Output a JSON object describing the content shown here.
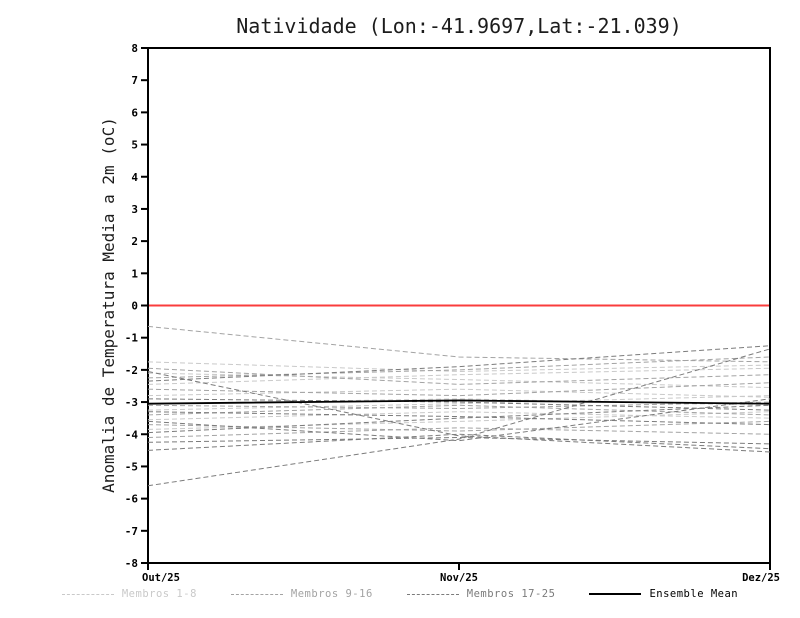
{
  "page": {
    "background": "#ffffff"
  },
  "chart_data": {
    "type": "line",
    "title": "Natividade (Lon:-41.9697,Lat:-21.039)",
    "ylabel": "Anomalia de Temperatura Media a 2m (oC)",
    "xlabel": "",
    "categories": [
      "Out/25",
      "Nov/25",
      "Dez/25"
    ],
    "ylim": [
      -8,
      8
    ],
    "yticks": [
      8,
      7,
      6,
      5,
      4,
      3,
      2,
      1,
      0,
      -1,
      -2,
      -3,
      -4,
      -5,
      -6,
      -7,
      -8
    ],
    "grid": false,
    "legend_position": "bottom",
    "frame_color": "#000000",
    "zero_line": {
      "value": 0,
      "color": "#fa3c3c"
    },
    "groups": [
      {
        "name": "Membros 1-8",
        "color": "#c9c9c9",
        "style": "dashed"
      },
      {
        "name": "Membros 9-16",
        "color": "#a3a3a3",
        "style": "dashed"
      },
      {
        "name": "Membros 17-25",
        "color": "#7b7b7b",
        "style": "dashed"
      },
      {
        "name": "Ensemble Mean",
        "color": "#000000",
        "style": "solid"
      }
    ],
    "series": [
      {
        "name": "Membro 1",
        "group": 0,
        "values": [
          -1.75,
          -2.05,
          -1.85
        ]
      },
      {
        "name": "Membro 2",
        "group": 0,
        "values": [
          -2.1,
          -2.3,
          -2.55
        ]
      },
      {
        "name": "Membro 3",
        "group": 0,
        "values": [
          -2.45,
          -2.15,
          -1.95
        ]
      },
      {
        "name": "Membro 4",
        "group": 0,
        "values": [
          -2.8,
          -2.6,
          -2.85
        ]
      },
      {
        "name": "Membro 5",
        "group": 0,
        "values": [
          -3.05,
          -2.9,
          -3.1
        ]
      },
      {
        "name": "Membro 6",
        "group": 0,
        "values": [
          -3.25,
          -3.05,
          -2.8
        ]
      },
      {
        "name": "Membro 7",
        "group": 0,
        "values": [
          -3.55,
          -3.3,
          -3.5
        ]
      },
      {
        "name": "Membro 8",
        "group": 0,
        "values": [
          -3.85,
          -3.6,
          -3.3
        ]
      },
      {
        "name": "Membro 9",
        "group": 1,
        "values": [
          -0.65,
          -1.6,
          -1.75
        ]
      },
      {
        "name": "Membro 10",
        "group": 1,
        "values": [
          -1.95,
          -2.45,
          -2.15
        ]
      },
      {
        "name": "Membro 11",
        "group": 1,
        "values": [
          -2.25,
          -2.0,
          -1.6
        ]
      },
      {
        "name": "Membro 12",
        "group": 1,
        "values": [
          -2.6,
          -2.8,
          -2.4
        ]
      },
      {
        "name": "Membro 13",
        "group": 1,
        "values": [
          -3.1,
          -3.2,
          -3.0
        ]
      },
      {
        "name": "Membro 14",
        "group": 1,
        "values": [
          -3.4,
          -3.1,
          -3.4
        ]
      },
      {
        "name": "Membro 15",
        "group": 1,
        "values": [
          -3.7,
          -3.9,
          -3.6
        ]
      },
      {
        "name": "Membro 16",
        "group": 1,
        "values": [
          -4.1,
          -3.8,
          -4.0
        ]
      },
      {
        "name": "Membro 17",
        "group": 2,
        "values": [
          -5.6,
          -4.15,
          -1.35
        ]
      },
      {
        "name": "Membro 18",
        "group": 2,
        "values": [
          -4.5,
          -4.0,
          -4.45
        ]
      },
      {
        "name": "Membro 19",
        "group": 2,
        "values": [
          -4.25,
          -4.1,
          -4.3
        ]
      },
      {
        "name": "Membro 20",
        "group": 2,
        "values": [
          -3.95,
          -3.5,
          -3.1
        ]
      },
      {
        "name": "Membro 21",
        "group": 2,
        "values": [
          -3.3,
          -3.45,
          -3.7
        ]
      },
      {
        "name": "Membro 22",
        "group": 2,
        "values": [
          -2.9,
          -3.0,
          -3.25
        ]
      },
      {
        "name": "Membro 23",
        "group": 2,
        "values": [
          -2.05,
          -4.05,
          -4.55
        ]
      },
      {
        "name": "Membro 24",
        "group": 2,
        "values": [
          -2.35,
          -1.9,
          -1.25
        ]
      },
      {
        "name": "Membro 25",
        "group": 2,
        "values": [
          -3.6,
          -4.2,
          -2.9
        ]
      },
      {
        "name": "Ensemble Mean",
        "group": 3,
        "values": [
          -3.05,
          -2.95,
          -3.05
        ]
      }
    ]
  }
}
